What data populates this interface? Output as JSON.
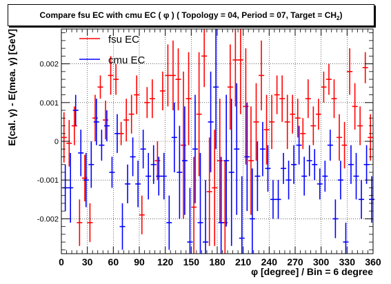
{
  "title_main": "Compare fsu EC with cmu EC ( φ ) ( Topology = 04, Period = 07, Target = CH",
  "title_sub": "2",
  "title_end": ")",
  "chart_data": {
    "type": "scatter",
    "title": "Compare fsu EC with cmu EC ( φ ) ( Topology = 04, Period = 07, Target = CH2)",
    "xlabel": "φ [degree] / Bin = 6 degree",
    "ylabel": "E(cal. γ) - E(mea. γ) [GeV]",
    "xlim": [
      0,
      360
    ],
    "ylim": [
      -0.0029,
      0.0029
    ],
    "xticks": [
      0,
      30,
      60,
      90,
      120,
      150,
      180,
      210,
      240,
      270,
      300,
      330,
      360
    ],
    "xtick_labels": [
      "0",
      "30",
      "60",
      "90",
      "120",
      "150",
      "180",
      "210",
      "240",
      "270",
      "300",
      "330",
      "360"
    ],
    "yticks": [
      -0.002,
      -0.001,
      0,
      0.001,
      0.002
    ],
    "ytick_labels": [
      "-0.002",
      "-0.001",
      "0",
      "0.001",
      "0.002"
    ],
    "grid": true,
    "legend_position": "top-left",
    "series": [
      {
        "name": "fsu EC",
        "color": "#ff0000",
        "x_offset": 0,
        "points": [
          {
            "x": 3,
            "y": 0.0001,
            "err": 0.00065
          },
          {
            "x": 9,
            "y": -5e-05,
            "err": 0.0006
          },
          {
            "x": 15,
            "y": 0.0004,
            "err": 0.0005
          },
          {
            "x": 21,
            "y": -0.0021,
            "err": 0.0006
          },
          {
            "x": 27,
            "y": -0.00095,
            "err": 0.0006
          },
          {
            "x": 33,
            "y": -0.0021,
            "err": 0.0005
          },
          {
            "x": 39,
            "y": 0.0006,
            "err": 0.0006
          },
          {
            "x": 45,
            "y": 0.0014,
            "err": 0.0003
          },
          {
            "x": 51,
            "y": 0.00055,
            "err": 0.0005
          },
          {
            "x": 57,
            "y": 0.0017,
            "err": 0.0005
          },
          {
            "x": 63,
            "y": 0.0016,
            "err": 0.0004
          },
          {
            "x": 69,
            "y": 0.0002,
            "err": 0.0003
          },
          {
            "x": 75,
            "y": 0.00055,
            "err": 0.00055
          },
          {
            "x": 81,
            "y": 0.0007,
            "err": 0.0005
          },
          {
            "x": 87,
            "y": 0.0012,
            "err": 0.0005
          },
          {
            "x": 93,
            "y": -0.0019,
            "err": 0.0005
          },
          {
            "x": 99,
            "y": 0.001,
            "err": 0.0004
          },
          {
            "x": 105,
            "y": 0.0011,
            "err": 0.0005
          },
          {
            "x": 111,
            "y": -0.0005,
            "err": 0.0005
          },
          {
            "x": 117,
            "y": 0.0013,
            "err": 0.0005
          },
          {
            "x": 123,
            "y": 0.0017,
            "err": 0.0008
          },
          {
            "x": 129,
            "y": 0.0017,
            "err": 0.0009
          },
          {
            "x": 135,
            "y": 0.0016,
            "err": 0.0008
          },
          {
            "x": 141,
            "y": -0.0001,
            "err": 0.0019
          },
          {
            "x": 147,
            "y": 0.0011,
            "err": 0.0012
          },
          {
            "x": 153,
            "y": -0.0017,
            "err": 0.0013
          },
          {
            "x": 159,
            "y": 0.0007,
            "err": 0.0016
          },
          {
            "x": 165,
            "y": 0.0022,
            "err": 0.0008
          },
          {
            "x": 171,
            "y": -0.0013,
            "err": 0.0014
          },
          {
            "x": 177,
            "y": -0.0012,
            "err": 0.0015
          },
          {
            "x": 183,
            "y": -0.0005,
            "err": 0.0016
          },
          {
            "x": 189,
            "y": -0.0021,
            "err": 0.0016
          },
          {
            "x": 195,
            "y": 0.0014,
            "err": 0.0011
          },
          {
            "x": 201,
            "y": 0.0021,
            "err": 0.0012
          },
          {
            "x": 207,
            "y": 0.0021,
            "err": 0.0014
          },
          {
            "x": 213,
            "y": 0.0009,
            "err": 0.0015
          },
          {
            "x": 219,
            "y": -0.0005,
            "err": 0.0014
          },
          {
            "x": 225,
            "y": 0.0005,
            "err": 0.001
          },
          {
            "x": 231,
            "y": 0.0017,
            "err": 0.0009
          },
          {
            "x": 237,
            "y": 0.0003,
            "err": 0.0009
          },
          {
            "x": 243,
            "y": 0.0005,
            "err": 0.0007
          },
          {
            "x": 249,
            "y": 0.0012,
            "err": 0.0005
          },
          {
            "x": 255,
            "y": 0.0011,
            "err": 0.0006
          },
          {
            "x": 261,
            "y": 0.0005,
            "err": 0.0007
          },
          {
            "x": 267,
            "y": 0.0007,
            "err": 0.0005
          },
          {
            "x": 273,
            "y": 0.0006,
            "err": 0.0005
          },
          {
            "x": 279,
            "y": 0.0002,
            "err": 0.0004
          },
          {
            "x": 285,
            "y": 0.0011,
            "err": 0.0005
          },
          {
            "x": 291,
            "y": 0.0004,
            "err": 0.0005
          },
          {
            "x": 297,
            "y": 0.0007,
            "err": 0.0004
          },
          {
            "x": 303,
            "y": 0.0014,
            "err": 0.0004
          },
          {
            "x": 309,
            "y": 0.0016,
            "err": 0.0004
          },
          {
            "x": 315,
            "y": 0.0011,
            "err": 0.0005
          },
          {
            "x": 321,
            "y": 0.0001,
            "err": 0.0006
          },
          {
            "x": 327,
            "y": -0.0001,
            "err": 0.0006
          },
          {
            "x": 333,
            "y": 0.0018,
            "err": 0.0006
          },
          {
            "x": 339,
            "y": 0.0009,
            "err": 0.0006
          },
          {
            "x": 345,
            "y": 0.0004,
            "err": 0.0005
          },
          {
            "x": 351,
            "y": 0.0019,
            "err": 0.0004
          },
          {
            "x": 357,
            "y": 0.0001,
            "err": 0.0006
          }
        ]
      },
      {
        "name": "cmu EC",
        "color": "#0000ff",
        "x_offset": 1.5,
        "points": [
          {
            "x": 3,
            "y": -0.0012,
            "err": 0.0006
          },
          {
            "x": 9,
            "y": -0.0012,
            "err": 0.0009
          },
          {
            "x": 15,
            "y": 0.0008,
            "err": 0.0004
          },
          {
            "x": 21,
            "y": -0.0003,
            "err": 0.0006
          },
          {
            "x": 27,
            "y": -0.001,
            "err": 0.0007
          },
          {
            "x": 33,
            "y": -0.0006,
            "err": 0.0006
          },
          {
            "x": 39,
            "y": 0.0005,
            "err": 0.0006
          },
          {
            "x": 45,
            "y": -0.0001,
            "err": 0.0004
          },
          {
            "x": 51,
            "y": 0.0004,
            "err": 0.0004
          },
          {
            "x": 57,
            "y": -0.0008,
            "err": 0.0004
          },
          {
            "x": 63,
            "y": 0.0002,
            "err": 0.0005
          },
          {
            "x": 69,
            "y": -0.0022,
            "err": 0.0006
          },
          {
            "x": 75,
            "y": -0.0011,
            "err": 0.0005
          },
          {
            "x": 81,
            "y": -0.0004,
            "err": 0.0005
          },
          {
            "x": 87,
            "y": -0.0011,
            "err": 0.0006
          },
          {
            "x": 93,
            "y": -0.0002,
            "err": 0.0005
          },
          {
            "x": 99,
            "y": -0.0009,
            "err": 0.0006
          },
          {
            "x": 105,
            "y": -0.0006,
            "err": 0.0005
          },
          {
            "x": 111,
            "y": -0.0009,
            "err": 0.0005
          },
          {
            "x": 117,
            "y": -0.0009,
            "err": 0.0006
          },
          {
            "x": 123,
            "y": -0.0021,
            "err": 0.0007
          },
          {
            "x": 129,
            "y": 0.0001,
            "err": 0.0009
          },
          {
            "x": 135,
            "y": -0.0008,
            "err": 0.0012
          },
          {
            "x": 141,
            "y": -0.0005,
            "err": 0.0014
          },
          {
            "x": 147,
            "y": -0.0026,
            "err": 0.0014
          },
          {
            "x": 153,
            "y": -0.0002,
            "err": 0.0014
          },
          {
            "x": 159,
            "y": -0.0021,
            "err": 0.0018
          },
          {
            "x": 165,
            "y": -0.0026,
            "err": 0.0016
          },
          {
            "x": 171,
            "y": 0.0005,
            "err": 0.0013
          },
          {
            "x": 177,
            "y": 0.0014,
            "err": 0.0016
          },
          {
            "x": 183,
            "y": -0.0021,
            "err": 0.0017
          },
          {
            "x": 189,
            "y": -0.0005,
            "err": 0.0017
          },
          {
            "x": 195,
            "y": -0.0008,
            "err": 0.0019
          },
          {
            "x": 201,
            "y": -0.0002,
            "err": 0.0017
          },
          {
            "x": 207,
            "y": -0.0025,
            "err": 0.0016
          },
          {
            "x": 213,
            "y": -0.0004,
            "err": 0.0014
          },
          {
            "x": 219,
            "y": -0.002,
            "err": 0.0013
          },
          {
            "x": 225,
            "y": -0.0009,
            "err": 0.0009
          },
          {
            "x": 231,
            "y": -0.0002,
            "err": 0.0007
          },
          {
            "x": 237,
            "y": -0.0007,
            "err": 0.0006
          },
          {
            "x": 243,
            "y": -0.0015,
            "err": 0.0005
          },
          {
            "x": 249,
            "y": -0.0015,
            "err": 0.0005
          },
          {
            "x": 255,
            "y": -0.0007,
            "err": 0.0004
          },
          {
            "x": 261,
            "y": -0.001,
            "err": 0.0005
          },
          {
            "x": 267,
            "y": -0.0006,
            "err": 0.0005
          },
          {
            "x": 273,
            "y": -0.0001,
            "err": 0.0005
          },
          {
            "x": 279,
            "y": -0.0009,
            "err": 0.0005
          },
          {
            "x": 285,
            "y": -0.0005,
            "err": 0.0004
          },
          {
            "x": 291,
            "y": -0.0006,
            "err": 0.0004
          },
          {
            "x": 297,
            "y": -0.0011,
            "err": 0.0004
          },
          {
            "x": 303,
            "y": -0.0009,
            "err": 0.0004
          },
          {
            "x": 309,
            "y": -0.0001,
            "err": 0.0004
          },
          {
            "x": 315,
            "y": -0.002,
            "err": 0.0005
          },
          {
            "x": 321,
            "y": -0.001,
            "err": 0.0005
          },
          {
            "x": 327,
            "y": -0.0026,
            "err": 0.0005
          },
          {
            "x": 333,
            "y": -0.0006,
            "err": 0.0005
          },
          {
            "x": 339,
            "y": -0.0009,
            "err": 0.0006
          },
          {
            "x": 345,
            "y": -0.0015,
            "err": 0.0005
          },
          {
            "x": 351,
            "y": -0.0006,
            "err": 0.0005
          },
          {
            "x": 357,
            "y": -0.0015,
            "err": 0.0006
          }
        ]
      }
    ]
  }
}
